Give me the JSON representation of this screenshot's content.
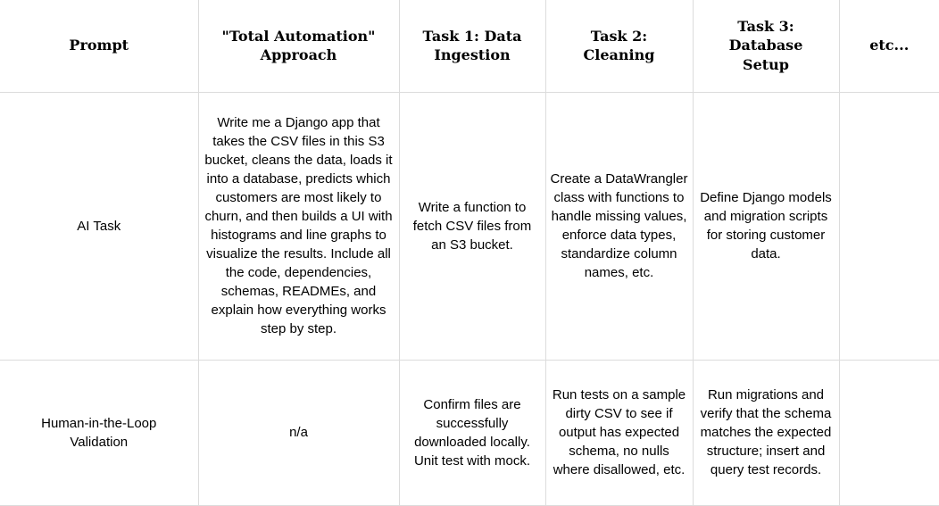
{
  "colors": {
    "background": "#ffffff",
    "border": "#dcdcdc",
    "text": "#000000"
  },
  "table": {
    "headers": [
      {
        "label": "Prompt"
      },
      {
        "label": "\"Total Automation\" Approach"
      },
      {
        "label": "Task 1: Data Ingestion"
      },
      {
        "label": "Task 2: Cleaning"
      },
      {
        "label": "Task 3: Database Setup"
      },
      {
        "label": "etc..."
      }
    ],
    "rows": [
      {
        "label": "AI Task",
        "cells": [
          {
            "text": "Write me a Django app that takes the CSV files in this S3 bucket, cleans the data, loads it into a database, predicts which customers are most likely to churn, and then builds a UI with histograms and line graphs to visualize the results. Include all the code, dependencies, schemas, READMEs, and explain how everything works step by step."
          },
          {
            "text": "Write a function to fetch CSV files from an S3 bucket."
          },
          {
            "text": "Create a DataWrangler class with functions to handle missing values, enforce data types, standardize column names, etc."
          },
          {
            "text": "Define Django models and migration scripts for storing customer data."
          },
          {
            "text": ""
          }
        ]
      },
      {
        "label": "Human-in-the-Loop Validation",
        "cells": [
          {
            "text": "n/a"
          },
          {
            "text": "Confirm files are successfully downloaded locally. Unit test with mock."
          },
          {
            "text": "Run tests on a sample dirty CSV to see if output has expected schema, no nulls where disallowed, etc."
          },
          {
            "text": "Run migrations and verify that the schema matches the expected structure; insert and query test records."
          },
          {
            "text": ""
          }
        ]
      }
    ]
  }
}
